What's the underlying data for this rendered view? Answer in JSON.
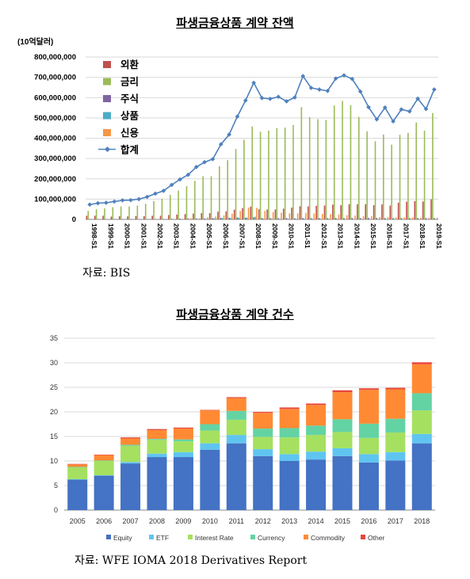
{
  "charts": {
    "top": {
      "title": "파생금융상품 계약 잔액",
      "source": "자료: BIS"
    },
    "bottom": {
      "title": "파생금융상품 계약 건수",
      "source": "자료: WFE IOMA 2018 Derivatives Report"
    }
  },
  "chart_data": [
    {
      "type": "bar",
      "title": "파생금융상품 계약 잔액",
      "ylabel": "(10억달러)",
      "ylim": [
        0,
        800000000
      ],
      "yticks": [
        "0",
        "100,000,000",
        "200,000,000",
        "300,000,000",
        "400,000,000",
        "500,000,000",
        "600,000,000",
        "700,000,000",
        "800,000,000"
      ],
      "x": [
        "1998-S1",
        "1998-S2",
        "1999-S1",
        "1999-S2",
        "2000-S1",
        "2000-S2",
        "2001-S1",
        "2001-S2",
        "2002-S1",
        "2002-S2",
        "2003-S1",
        "2003-S2",
        "2004-S1",
        "2004-S2",
        "2005-S1",
        "2005-S2",
        "2006-S1",
        "2006-S2",
        "2007-S1",
        "2007-S2",
        "2008-S1",
        "2008-S2",
        "2009-S1",
        "2009-S2",
        "2010-S1",
        "2010-S2",
        "2011-S1",
        "2011-S2",
        "2012-S1",
        "2012-S2",
        "2013-S1",
        "2013-S2",
        "2014-S1",
        "2014-S2",
        "2015-S1",
        "2015-S2",
        "2016-S1",
        "2016-S2",
        "2017-S1",
        "2017-S2",
        "2018-S1",
        "2018-S2",
        "2019-S1"
      ],
      "xtick_labels": [
        "1998-S1",
        "1999-S1",
        "2000-S1",
        "2001-S1",
        "2002-S1",
        "2003-S1",
        "2004-S1",
        "2005-S1",
        "2006-S1",
        "2007-S1",
        "2008-S1",
        "2009-S1",
        "2010-S1",
        "2011-S1",
        "2012-S1",
        "2013-S1",
        "2014-S1",
        "2015-S1",
        "2016-S1",
        "2017-S1",
        "2018-S1",
        "2019-S1"
      ],
      "legend_position": "top-left",
      "series": [
        {
          "name": "외환",
          "kind": "bar",
          "color": "#c0504d",
          "values": [
            18000000,
            18000000,
            18000000,
            14000000,
            16000000,
            15000000,
            17000000,
            16000000,
            18000000,
            18000000,
            22000000,
            24000000,
            26000000,
            29000000,
            31000000,
            31000000,
            38000000,
            40000000,
            48000000,
            56000000,
            63000000,
            50000000,
            49000000,
            49000000,
            53000000,
            58000000,
            65000000,
            64000000,
            67000000,
            68000000,
            73000000,
            70000000,
            75000000,
            75000000,
            75000000,
            70000000,
            74000000,
            68000000,
            82000000,
            87000000,
            90000000,
            88000000,
            99000000
          ]
        },
        {
          "name": "금리",
          "kind": "bar",
          "color": "#9bbb59",
          "values": [
            42000000,
            50000000,
            54000000,
            60000000,
            64000000,
            64000000,
            68000000,
            77000000,
            90000000,
            102000000,
            121000000,
            142000000,
            164000000,
            190000000,
            212000000,
            212000000,
            262000000,
            292000000,
            347000000,
            393000000,
            458000000,
            432000000,
            437000000,
            450000000,
            452000000,
            465000000,
            553000000,
            504000000,
            494000000,
            490000000,
            561000000,
            584000000,
            563000000,
            505000000,
            434000000,
            385000000,
            418000000,
            368000000,
            417000000,
            426000000,
            478000000,
            437000000,
            524000000
          ]
        },
        {
          "name": "주식",
          "kind": "bar",
          "color": "#8064a2",
          "values": [
            1900000,
            1500000,
            2000000,
            1800000,
            1900000,
            1900000,
            1900000,
            1900000,
            2200000,
            2300000,
            2800000,
            3800000,
            4500000,
            4400000,
            4600000,
            5800000,
            7500000,
            7500000,
            9500000,
            8500000,
            10100000,
            6500000,
            6600000,
            5900000,
            6300000,
            5600000,
            6800000,
            6000000,
            6300000,
            6300000,
            6800000,
            6600000,
            6900000,
            6900000,
            7500000,
            7000000,
            6600000,
            6300000,
            6600000,
            6600000,
            6900000,
            6300000,
            6700000
          ]
        },
        {
          "name": "상품",
          "kind": "bar",
          "color": "#4bacc6",
          "values": [
            400000,
            400000,
            400000,
            400000,
            600000,
            700000,
            600000,
            600000,
            800000,
            900000,
            1000000,
            1400000,
            1300000,
            1400000,
            2900000,
            5400000,
            6400000,
            7100000,
            8000000,
            9000000,
            13200000,
            4400000,
            3700000,
            2900000,
            2900000,
            2900000,
            3200000,
            3000000,
            3000000,
            2600000,
            2500000,
            2200000,
            2200000,
            1900000,
            1700000,
            1300000,
            1400000,
            1400000,
            1400000,
            1900000,
            2000000,
            2100000,
            2000000
          ]
        },
        {
          "name": "신용",
          "kind": "bar",
          "color": "#f79646",
          "values": [
            0,
            0,
            0,
            0,
            0,
            0,
            0,
            0,
            0,
            0,
            0,
            0,
            6000000,
            6000000,
            10000000,
            14000000,
            20000000,
            28000000,
            42000000,
            58000000,
            57000000,
            42000000,
            36000000,
            33000000,
            30000000,
            30000000,
            32000000,
            29000000,
            27000000,
            25000000,
            24000000,
            21000000,
            19000000,
            16000000,
            15000000,
            12000000,
            12000000,
            10000000,
            10000000,
            10000000,
            8000000,
            8000000,
            8000000
          ]
        },
        {
          "name": "합계",
          "kind": "line",
          "color": "#4f81bd",
          "values": [
            73000000,
            80000000,
            82000000,
            88000000,
            94000000,
            95000000,
            100000000,
            111000000,
            127000000,
            141000000,
            170000000,
            197000000,
            220000000,
            258000000,
            282000000,
            297000000,
            370000000,
            418000000,
            507000000,
            586000000,
            673000000,
            598000000,
            594000000,
            604000000,
            582000000,
            601000000,
            706000000,
            648000000,
            640000000,
            633000000,
            694000000,
            710000000,
            692000000,
            630000000,
            553000000,
            493000000,
            551000000,
            483000000,
            542000000,
            532000000,
            595000000,
            544000000,
            640000000
          ]
        }
      ]
    },
    {
      "type": "bar",
      "title": "파생금융상품 계약 건수",
      "ylim": [
        0,
        35
      ],
      "yticks": [
        "0",
        "5",
        "10",
        "15",
        "20",
        "25",
        "30",
        "35"
      ],
      "categories": [
        "2005",
        "2006",
        "2007",
        "2008",
        "2009",
        "2010",
        "2011",
        "2012",
        "2013",
        "2014",
        "2015",
        "2016",
        "2017",
        "2018"
      ],
      "legend_position": "bottom",
      "stacked": true,
      "series": [
        {
          "name": "Equity",
          "color": "#4472c4",
          "values": [
            6.2,
            7.0,
            9.5,
            10.8,
            10.8,
            12.3,
            13.6,
            11.0,
            10.0,
            10.3,
            11.0,
            9.7,
            10.1,
            13.6
          ]
        },
        {
          "name": "ETF",
          "color": "#5fc5f0",
          "values": [
            0.1,
            0.1,
            0.3,
            0.7,
            1.0,
            1.3,
            1.7,
            1.4,
            1.4,
            1.6,
            1.6,
            1.7,
            1.7,
            1.9
          ]
        },
        {
          "name": "Interest Rate",
          "color": "#a5e060",
          "values": [
            2.4,
            2.9,
            3.3,
            2.8,
            2.2,
            2.6,
            3.1,
            2.5,
            3.4,
            3.4,
            3.3,
            3.3,
            4.0,
            4.8
          ]
        },
        {
          "name": "Currency",
          "color": "#63d3a4",
          "values": [
            0.1,
            0.1,
            0.2,
            0.2,
            0.4,
            1.3,
            1.8,
            1.7,
            1.9,
            1.9,
            2.6,
            2.9,
            2.8,
            3.5
          ]
        },
        {
          "name": "Commodity",
          "color": "#ff8a33",
          "values": [
            0.5,
            1.1,
            1.3,
            1.8,
            2.2,
            2.8,
            2.6,
            3.2,
            3.9,
            4.2,
            5.5,
            6.9,
            6.0,
            5.9
          ]
        },
        {
          "name": "Other",
          "color": "#e8453c",
          "values": [
            0.1,
            0.1,
            0.2,
            0.2,
            0.2,
            0.1,
            0.2,
            0.2,
            0.3,
            0.3,
            0.4,
            0.3,
            0.3,
            0.4
          ]
        }
      ]
    }
  ]
}
